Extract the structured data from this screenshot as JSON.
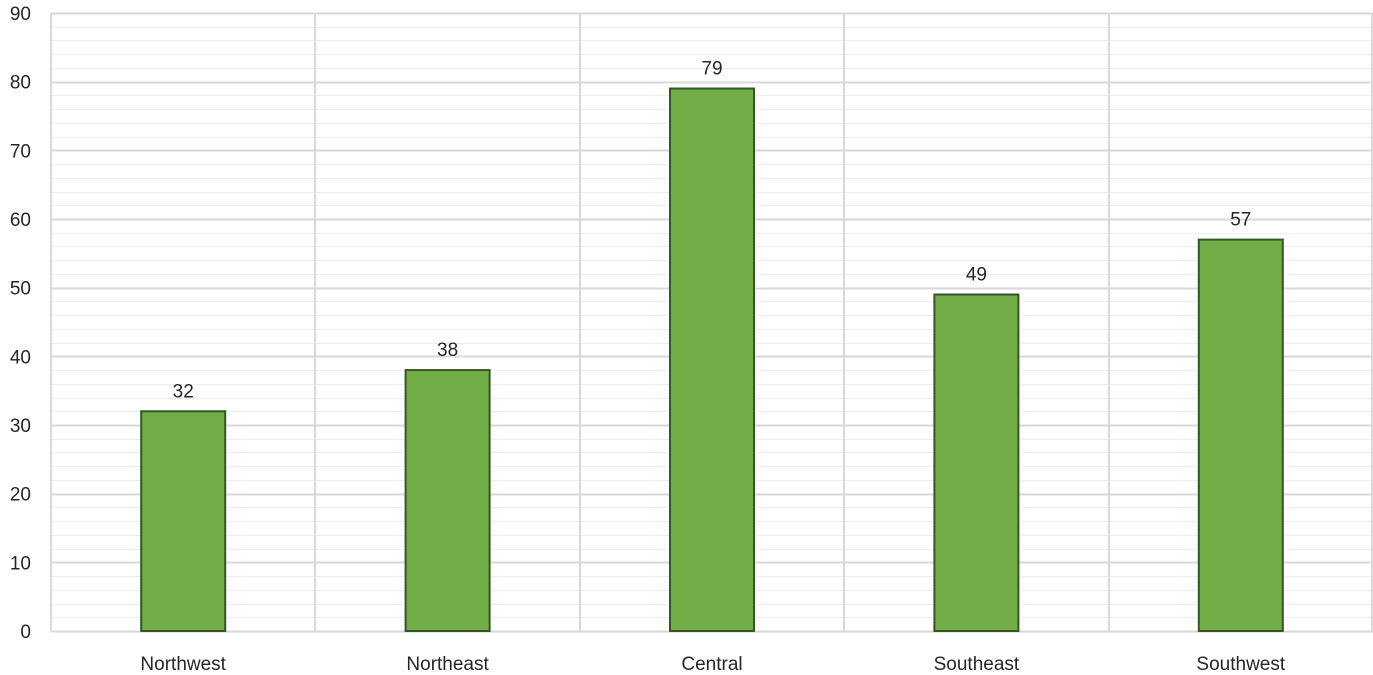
{
  "chart_data": {
    "type": "bar",
    "categories": [
      "Northwest",
      "Northeast",
      "Central",
      "Southeast",
      "Southwest"
    ],
    "values": [
      32,
      38,
      79,
      49,
      57
    ],
    "data_labels": [
      "32",
      "38",
      "79",
      "49",
      "57"
    ],
    "y_ticks": [
      "0",
      "10",
      "20",
      "30",
      "40",
      "50",
      "60",
      "70",
      "80",
      "90"
    ],
    "ylim": [
      0,
      90
    ],
    "major_tick_step": 10,
    "minor_tick_step": 2,
    "grid": true,
    "vertical_category_gridlines": true,
    "bar_fill": "#70AD47",
    "bar_border": "#375623",
    "major_grid_color": "#D9D9D9",
    "minor_grid_color": "#EDEDED",
    "text_color": "#262626"
  }
}
